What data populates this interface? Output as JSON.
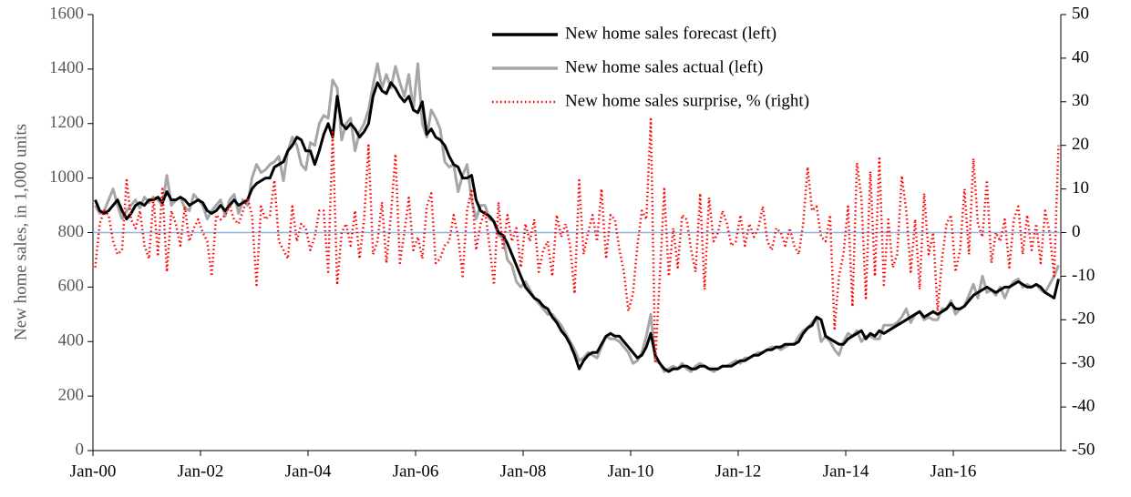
{
  "chart_data": {
    "type": "line",
    "y_label": "New home sales, in 1,000 units",
    "categories": [
      "Jan-00",
      null,
      null,
      null,
      null,
      null,
      null,
      null,
      null,
      null,
      null,
      null,
      null,
      null,
      null,
      null,
      null,
      null,
      null,
      null,
      null,
      null,
      null,
      null,
      "Jan-02",
      null,
      null,
      null,
      null,
      null,
      null,
      null,
      null,
      null,
      null,
      null,
      null,
      null,
      null,
      null,
      null,
      null,
      null,
      null,
      null,
      null,
      null,
      null,
      "Jan-04",
      null,
      null,
      null,
      null,
      null,
      null,
      null,
      null,
      null,
      null,
      null,
      null,
      null,
      null,
      null,
      null,
      null,
      null,
      null,
      null,
      null,
      null,
      null,
      "Jan-06",
      null,
      null,
      null,
      null,
      null,
      null,
      null,
      null,
      null,
      null,
      null,
      null,
      null,
      null,
      null,
      null,
      null,
      null,
      null,
      null,
      null,
      null,
      null,
      "Jan-08",
      null,
      null,
      null,
      null,
      null,
      null,
      null,
      null,
      null,
      null,
      null,
      null,
      null,
      null,
      null,
      null,
      null,
      null,
      null,
      null,
      null,
      null,
      null,
      "Jan-10",
      null,
      null,
      null,
      null,
      null,
      null,
      null,
      null,
      null,
      null,
      null,
      null,
      null,
      null,
      null,
      null,
      null,
      null,
      null,
      null,
      null,
      null,
      null,
      "Jan-12",
      null,
      null,
      null,
      null,
      null,
      null,
      null,
      null,
      null,
      null,
      null,
      null,
      null,
      null,
      null,
      null,
      null,
      null,
      null,
      null,
      null,
      null,
      null,
      "Jan-14",
      null,
      null,
      null,
      null,
      null,
      null,
      null,
      null,
      null,
      null,
      null,
      null,
      null,
      null,
      null,
      null,
      null,
      null,
      null,
      null,
      null,
      null,
      null,
      "Jan-16",
      null,
      null,
      null,
      null,
      null,
      null,
      null,
      null,
      null,
      null,
      null,
      null,
      null,
      null,
      null,
      null,
      null,
      null,
      null,
      null,
      null,
      null,
      null
    ],
    "ylim": [
      0,
      1600
    ],
    "yticks": [
      0,
      200,
      400,
      600,
      800,
      1000,
      1200,
      1400,
      1600
    ],
    "y2lim": [
      -50,
      50
    ],
    "y2ticks": [
      -50,
      -40,
      -30,
      -20,
      -10,
      0,
      10,
      20,
      30,
      40,
      50
    ],
    "legend": "top",
    "series": [
      {
        "name": "New home sales forecast (left)",
        "color": "#000000",
        "style": "solid",
        "values": [
          920,
          880,
          870,
          880,
          900,
          920,
          880,
          850,
          870,
          900,
          910,
          900,
          920,
          920,
          930,
          910,
          950,
          920,
          920,
          930,
          920,
          900,
          910,
          920,
          910,
          880,
          870,
          880,
          900,
          880,
          900,
          920,
          900,
          910,
          920,
          960,
          980,
          990,
          1000,
          1000,
          1040,
          1050,
          1060,
          1100,
          1120,
          1150,
          1140,
          1100,
          1100,
          1050,
          1100,
          1160,
          1200,
          1150,
          1300,
          1200,
          1180,
          1200,
          1180,
          1150,
          1170,
          1200,
          1300,
          1350,
          1320,
          1310,
          1350,
          1330,
          1300,
          1280,
          1300,
          1250,
          1240,
          1280,
          1160,
          1180,
          1150,
          1140,
          1120,
          1080,
          1050,
          1040,
          1000,
          1000,
          1010,
          920,
          880,
          870,
          860,
          840,
          800,
          790,
          760,
          720,
          680,
          640,
          600,
          580,
          560,
          550,
          530,
          520,
          490,
          470,
          440,
          420,
          390,
          350,
          300,
          330,
          350,
          360,
          360,
          390,
          420,
          430,
          420,
          420,
          400,
          380,
          360,
          340,
          350,
          380,
          430,
          350,
          320,
          300,
          290,
          300,
          300,
          310,
          310,
          300,
          300,
          310,
          310,
          300,
          300,
          300,
          310,
          310,
          310,
          320,
          330,
          330,
          340,
          350,
          350,
          360,
          370,
          370,
          380,
          380,
          390,
          390,
          390,
          400,
          430,
          450,
          460,
          490,
          480,
          420,
          410,
          400,
          390,
          390,
          410,
          420,
          430,
          440,
          410,
          430,
          420,
          440,
          430,
          440,
          450,
          460,
          470,
          480,
          490,
          500,
          510,
          490,
          500,
          510,
          500,
          510,
          520,
          540,
          520,
          520,
          530,
          550,
          570,
          580,
          590,
          600,
          590,
          580,
          590,
          600,
          600,
          610,
          620,
          610,
          600,
          600,
          610,
          600,
          580,
          570,
          560,
          630
        ]
      },
      {
        "name": "New home sales actual (left)",
        "color": "#a6a6a6",
        "style": "solid",
        "values": [
          900,
          870,
          880,
          920,
          960,
          900,
          850,
          880,
          900,
          920,
          890,
          930,
          910,
          930,
          920,
          900,
          1010,
          900,
          920,
          930,
          890,
          880,
          940,
          920,
          900,
          850,
          880,
          900,
          920,
          860,
          920,
          940,
          870,
          920,
          900,
          1000,
          1050,
          1020,
          1030,
          1050,
          1060,
          1080,
          990,
          1100,
          1150,
          1120,
          1050,
          1030,
          1130,
          1120,
          1200,
          1230,
          1220,
          1360,
          1330,
          1140,
          1200,
          1220,
          1100,
          1170,
          1200,
          1250,
          1340,
          1420,
          1330,
          1380,
          1330,
          1410,
          1350,
          1300,
          1380,
          1250,
          1420,
          1200,
          1150,
          1250,
          1220,
          1180,
          1060,
          1040,
          1050,
          950,
          1010,
          1050,
          920,
          850,
          900,
          900,
          850,
          840,
          790,
          780,
          700,
          680,
          620,
          600,
          620,
          590,
          560,
          540,
          520,
          500,
          500,
          480,
          460,
          430,
          400,
          370,
          330,
          340,
          360,
          350,
          340,
          380,
          420,
          410,
          410,
          400,
          380,
          360,
          320,
          330,
          360,
          420,
          500,
          330,
          320,
          290,
          300,
          310,
          300,
          320,
          300,
          290,
          310,
          320,
          310,
          300,
          290,
          300,
          310,
          310,
          320,
          330,
          320,
          340,
          340,
          350,
          360,
          360,
          370,
          380,
          380,
          370,
          380,
          390,
          390,
          420,
          440,
          450,
          470,
          490,
          400,
          420,
          400,
          370,
          350,
          400,
          430,
          420,
          440,
          400,
          420,
          420,
          410,
          410,
          460,
          460,
          460,
          470,
          490,
          520,
          470,
          500,
          510,
          480,
          490,
          480,
          480,
          520,
          520,
          550,
          500,
          520,
          530,
          570,
          610,
          560,
          640,
          580,
          590,
          570,
          600,
          560,
          600,
          620,
          630,
          600,
          610,
          600,
          610,
          590,
          580,
          610,
          640,
          680
        ]
      },
      {
        "name": "New home sales surprise, % (right)",
        "color": "#ff0000",
        "style": "dotted",
        "axis": "y2",
        "values": [
          -8,
          2,
          5,
          4,
          -2,
          -5,
          -4,
          12,
          3,
          1,
          5,
          -3,
          -6,
          8,
          -5,
          10,
          -9,
          5,
          2,
          -3,
          6,
          -2,
          1,
          3,
          0,
          -2,
          -10,
          4,
          3,
          4,
          6,
          3,
          2,
          5,
          8,
          4,
          -12,
          6,
          3,
          4,
          12,
          -2,
          -4,
          -6,
          6,
          -2,
          2,
          1,
          -4,
          -1,
          5,
          5,
          -9,
          23,
          -12,
          0,
          2,
          -3,
          5,
          -6,
          3,
          20,
          -5,
          -2,
          7,
          -7,
          4,
          18,
          -7,
          0,
          8,
          -4,
          -1,
          -6,
          6,
          9,
          -7,
          -6,
          -3,
          -2,
          4,
          -1,
          -10,
          5,
          10,
          -4,
          2,
          5,
          -3,
          -12,
          7,
          -4,
          4,
          -2,
          1,
          -8,
          2,
          -2,
          3,
          -9,
          -4,
          -2,
          -10,
          4,
          -1,
          2,
          -3,
          -14,
          12,
          -5,
          0,
          4,
          -2,
          10,
          -6,
          4,
          3,
          -4,
          -9,
          -18,
          -14,
          -3,
          5,
          3,
          26,
          -30,
          -10,
          10,
          -10,
          1,
          -8,
          4,
          3,
          -4,
          -9,
          9,
          -13,
          8,
          -2,
          0,
          5,
          2,
          -3,
          -2,
          4,
          -3,
          2,
          -1,
          1,
          6,
          -2,
          -4,
          1,
          0,
          -3,
          1,
          -3,
          -5,
          2,
          15,
          5,
          6,
          -1,
          -2,
          4,
          -22,
          -10,
          -5,
          6,
          -17,
          16,
          8,
          -15,
          14,
          -10,
          17,
          -12,
          3,
          -8,
          -5,
          13,
          5,
          -9,
          3,
          -13,
          9,
          -5,
          0,
          -18,
          -6,
          2,
          4,
          -9,
          -4,
          10,
          -5,
          17,
          2,
          -1,
          12,
          -7,
          0,
          -2,
          3,
          -8,
          3,
          6,
          -5,
          4,
          -4,
          2,
          -7,
          5,
          0,
          -10,
          20
        ]
      }
    ]
  }
}
